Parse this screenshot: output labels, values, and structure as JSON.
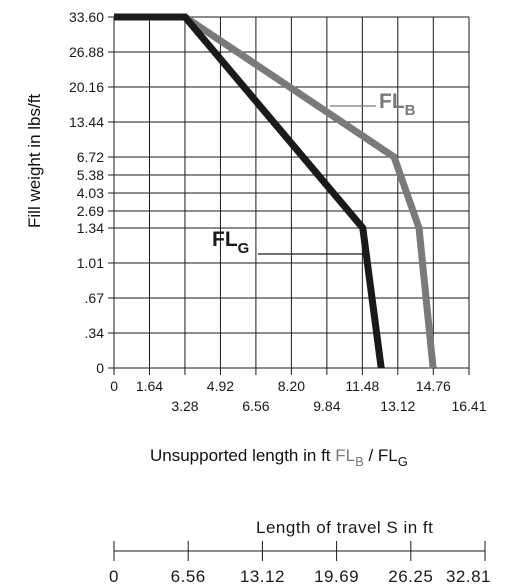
{
  "chart_data": {
    "type": "line",
    "ylabel": "Fill weight in lbs/ft",
    "xlabel": {
      "text": "Unsupported length in ft ",
      "series_b": "FL",
      "series_b_sub": "B",
      "separator": " / ",
      "series_g": "FL",
      "series_g_sub": "G"
    },
    "x_ticks": [
      {
        "value": 0,
        "label": "0"
      },
      {
        "value": 1.64,
        "label": "1.64"
      },
      {
        "value": 3.28,
        "label": "3.28"
      },
      {
        "value": 4.92,
        "label": "4.92"
      },
      {
        "value": 6.56,
        "label": "6.56"
      },
      {
        "value": 8.2,
        "label": "8.20"
      },
      {
        "value": 9.84,
        "label": "9.84"
      },
      {
        "value": 11.48,
        "label": "11.48"
      },
      {
        "value": 13.12,
        "label": "13.12"
      },
      {
        "value": 14.76,
        "label": "14.76"
      },
      {
        "value": 16.41,
        "label": "16.41"
      }
    ],
    "y_ticks": [
      "0",
      ".34",
      ".67",
      "1.01",
      "1.34",
      "2.69",
      "4.03",
      "5.38",
      "6.72",
      "13.44",
      "20.16",
      "26.88",
      "33.60"
    ],
    "y_scale": "non-linear (ticks evenly labelled as printed)",
    "xlim": [
      0,
      16.41
    ],
    "grid": true,
    "series": [
      {
        "name": "FLB",
        "label_main": "FL",
        "label_sub": "B",
        "color": "#7a7a7a",
        "points": [
          {
            "x": 0,
            "y": "33.60"
          },
          {
            "x": 3.28,
            "y": "33.60"
          },
          {
            "x": 12.95,
            "y": "6.72"
          },
          {
            "x": 14.1,
            "y": "1.34"
          },
          {
            "x": 14.75,
            "y": "0"
          }
        ]
      },
      {
        "name": "FLG",
        "label_main": "FL",
        "label_sub": "G",
        "color": "#1a1a1a",
        "points": [
          {
            "x": 0,
            "y": "33.60"
          },
          {
            "x": 3.28,
            "y": "33.60"
          },
          {
            "x": 11.5,
            "y": "1.34"
          },
          {
            "x": 12.35,
            "y": "0"
          }
        ]
      }
    ]
  },
  "travel_scale": {
    "title": "Length of travel S in ft",
    "ticks": [
      "0",
      "6.56",
      "13.12",
      "19.69",
      "26.25",
      "32.81"
    ]
  }
}
